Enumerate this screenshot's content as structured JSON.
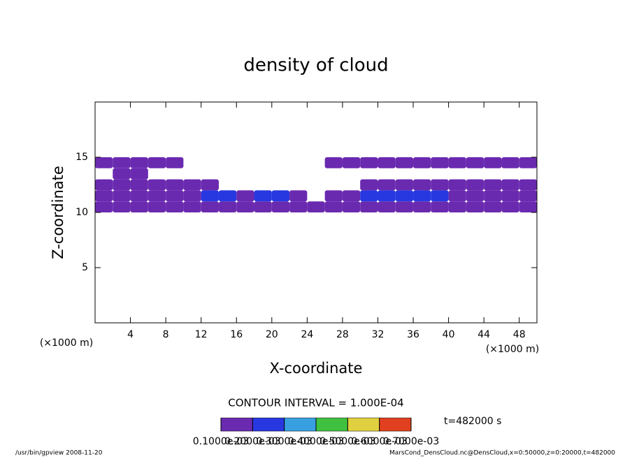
{
  "chart_data": {
    "type": "heatmap",
    "title": "density of cloud",
    "x_label": "X-coordinate",
    "y_label": "Z-coordinate",
    "x_unit": "(×1000 m)",
    "x": [
      1,
      3,
      5,
      7,
      9,
      11,
      13,
      15,
      17,
      19,
      21,
      23,
      25,
      27,
      29,
      31,
      33,
      35,
      37,
      39,
      41,
      43,
      45,
      47,
      49
    ],
    "y": [
      10.5,
      11.5,
      12.5,
      13.5,
      14.5
    ],
    "values": [
      [
        0.00012,
        0.00015,
        0.00013,
        0.00012,
        0.00012,
        0.00014,
        0.00015,
        0.00013,
        0.00012,
        0.00014,
        0.00013,
        0.00012,
        0.00011,
        0.00012,
        0.00015,
        0.00018,
        0.00016,
        0.00015,
        0.00016,
        0.00017,
        0.00015,
        0.00014,
        0.00015,
        0.00013,
        0.00012
      ],
      [
        0.00014,
        0.00013,
        0.00015,
        0.00014,
        0.00016,
        0.00018,
        0.0002,
        0.00022,
        0.00016,
        0.00022,
        0.00024,
        0.00013,
        null,
        0.00012,
        0.00018,
        0.0002,
        0.00022,
        0.00024,
        0.00022,
        0.0002,
        0.00016,
        0.00015,
        0.00018,
        0.00016,
        0.00015
      ],
      [
        0.00012,
        0.00013,
        0.00014,
        0.00015,
        0.00014,
        0.00013,
        0.00015,
        null,
        null,
        null,
        null,
        null,
        null,
        null,
        null,
        0.00011,
        0.00012,
        0.00012,
        0.00013,
        0.00012,
        0.00012,
        0.00013,
        0.00014,
        0.00013,
        0.00012
      ],
      [
        null,
        0.00012,
        0.00012,
        null,
        null,
        null,
        null,
        null,
        null,
        null,
        null,
        null,
        null,
        null,
        null,
        null,
        null,
        null,
        null,
        null,
        null,
        null,
        null,
        null,
        null
      ],
      [
        0.00011,
        0.00012,
        0.00012,
        0.00011,
        0.00011,
        null,
        null,
        null,
        null,
        null,
        null,
        null,
        null,
        0.00011,
        0.00011,
        0.00012,
        0.00013,
        0.00013,
        0.00012,
        0.00011,
        0.00011,
        0.00011,
        0.00012,
        0.00012,
        0.00011
      ]
    ],
    "xlim": [
      0,
      50
    ],
    "ylim": [
      0,
      20
    ],
    "xticks": [
      4,
      8,
      12,
      16,
      20,
      24,
      28,
      32,
      36,
      40,
      44,
      48
    ],
    "yticks": [
      5,
      10,
      15
    ],
    "colorbar": {
      "levels": [
        {
          "value": 0.0001,
          "label": "0.1000e-03"
        },
        {
          "value": 0.0002,
          "label": "0.2000e-03"
        },
        {
          "value": 0.0003,
          "label": "0.3000e-03"
        },
        {
          "value": 0.0004,
          "label": "0.4000e-03"
        },
        {
          "value": 0.0005,
          "label": "0.5000e-03"
        },
        {
          "value": 0.0006,
          "label": "0.6000e-03"
        },
        {
          "value": 0.0007,
          "label": "0.7000e-03"
        }
      ],
      "colors": [
        "#6a2ab0",
        "#2838e0",
        "#38a0e0",
        "#40c040",
        "#e0d040",
        "#e04020"
      ]
    },
    "contour_interval_label": "CONTOUR INTERVAL = 1.000E-04",
    "time_label": "t=482000 s",
    "footer_left": "/usr/bin/gpview  2008-11-20",
    "footer_right": "MarsCond_DensCloud.nc@DensCloud,x=0:50000,z=0:20000,t=482000"
  }
}
